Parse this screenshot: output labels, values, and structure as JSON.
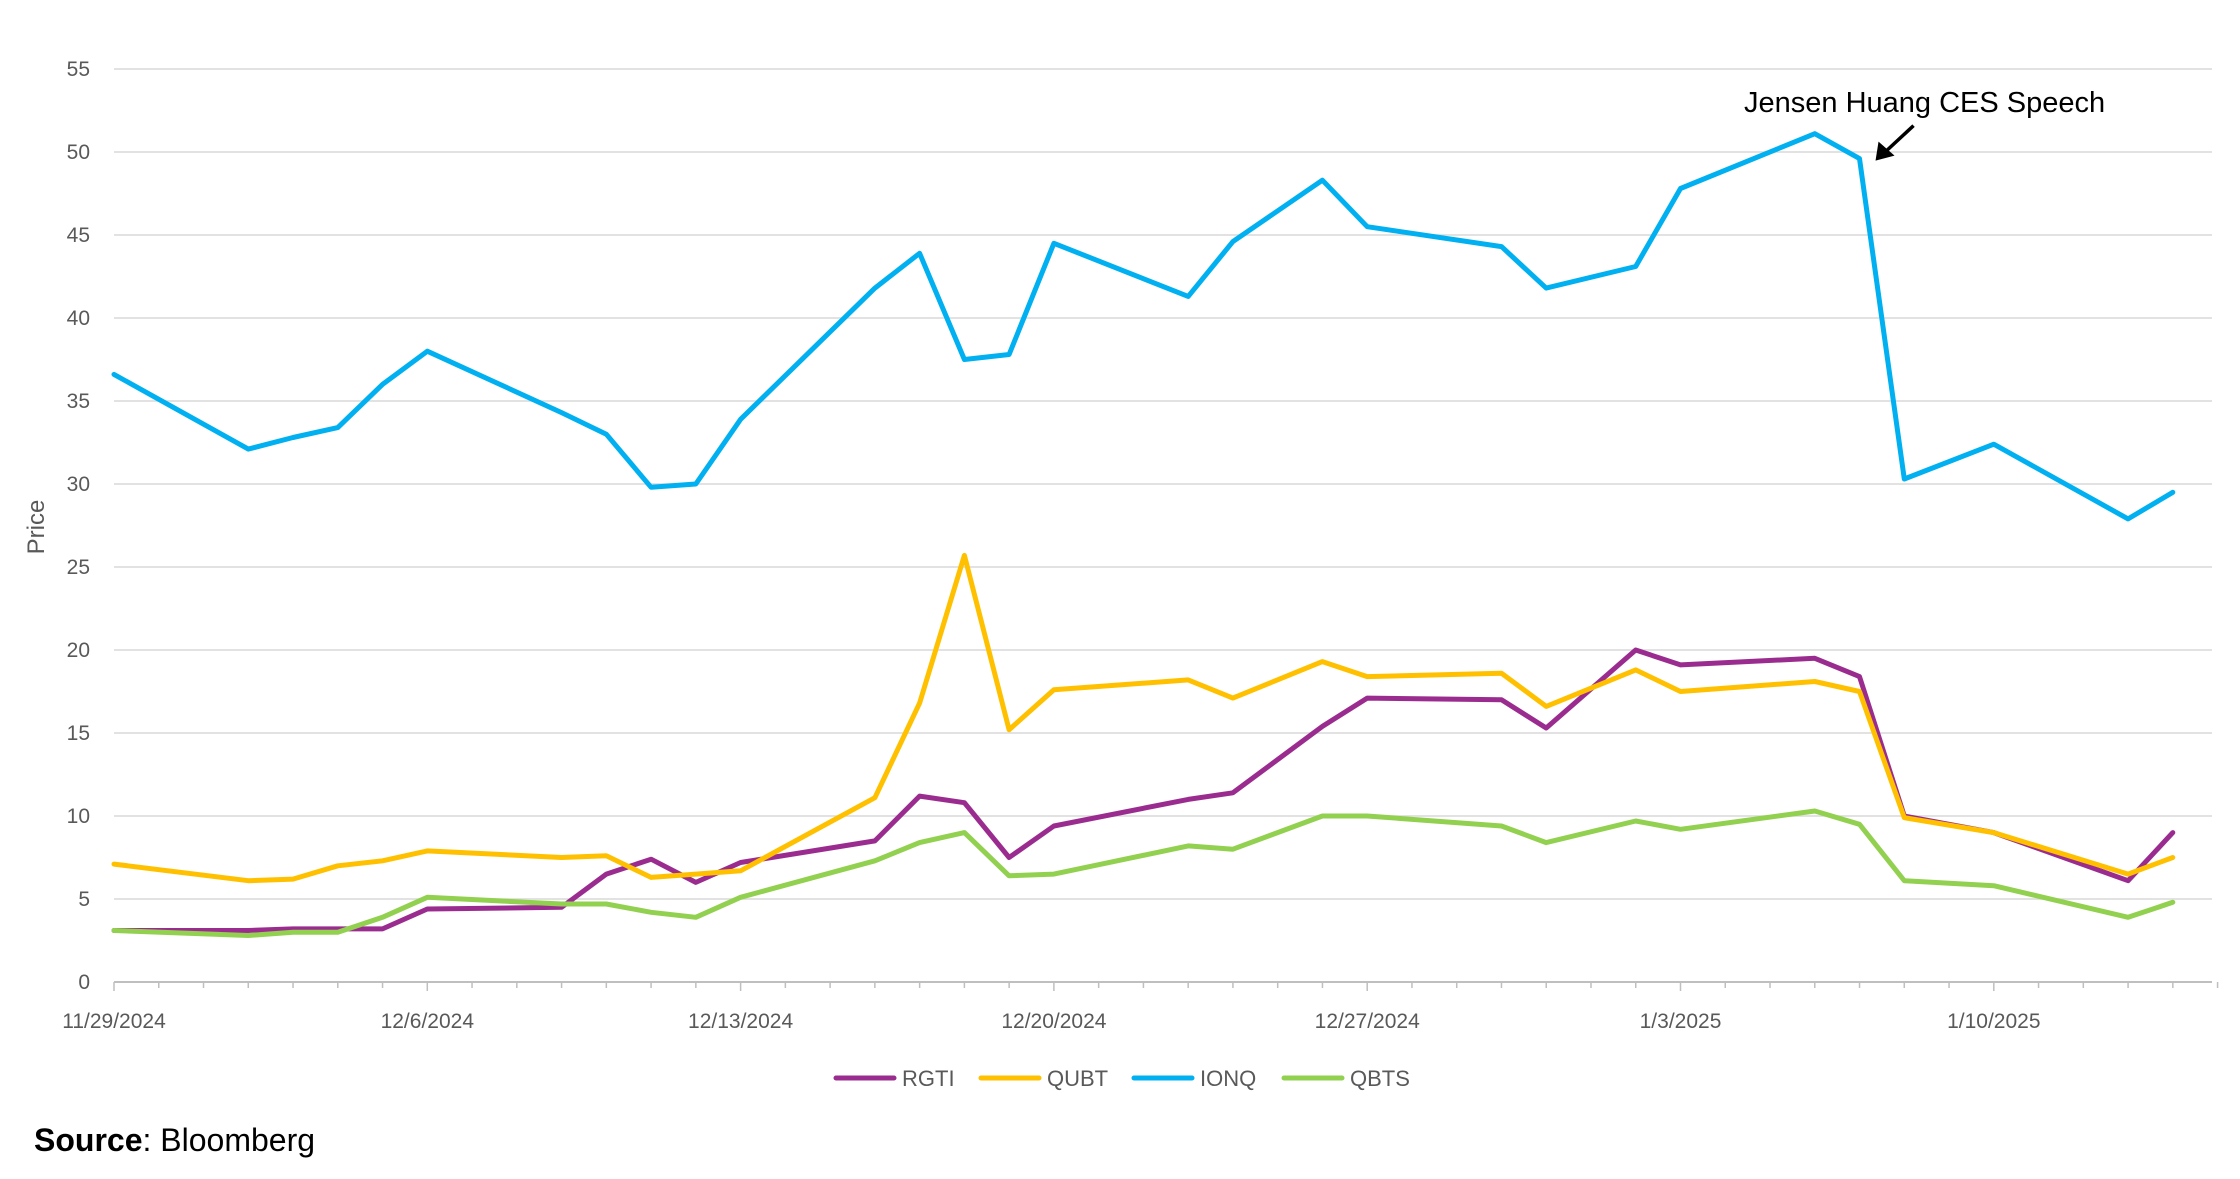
{
  "chart_data": {
    "type": "line",
    "xlabel": "",
    "ylabel": "Price",
    "ylim": [
      0,
      55
    ],
    "yticks": [
      0,
      5,
      10,
      15,
      20,
      25,
      30,
      35,
      40,
      45,
      50,
      55
    ],
    "xticks": [
      "11/29/2024",
      "12/6/2024",
      "12/13/2024",
      "12/20/2024",
      "12/27/2024",
      "1/3/2025",
      "1/10/2025"
    ],
    "grid": true,
    "legend_position": "bottom",
    "dates": [
      "2024-11-29",
      "2024-12-02",
      "2024-12-03",
      "2024-12-04",
      "2024-12-05",
      "2024-12-06",
      "2024-12-09",
      "2024-12-10",
      "2024-12-11",
      "2024-12-12",
      "2024-12-13",
      "2024-12-16",
      "2024-12-17",
      "2024-12-18",
      "2024-12-19",
      "2024-12-20",
      "2024-12-23",
      "2024-12-24",
      "2024-12-26",
      "2024-12-27",
      "2024-12-30",
      "2024-12-31",
      "2025-01-02",
      "2025-01-03",
      "2025-01-06",
      "2025-01-07",
      "2025-01-08",
      "2025-01-10",
      "2025-01-13",
      "2025-01-14"
    ],
    "series": [
      {
        "name": "RGTI",
        "color": "#9B2C8F",
        "values": [
          3.1,
          3.1,
          3.2,
          3.2,
          3.2,
          4.4,
          4.5,
          6.5,
          7.4,
          6.0,
          7.2,
          8.5,
          11.2,
          10.8,
          7.5,
          9.4,
          11.0,
          11.4,
          15.4,
          17.1,
          17.0,
          15.3,
          20.0,
          19.1,
          19.5,
          18.4,
          10.0,
          9.0,
          6.1,
          9.0
        ]
      },
      {
        "name": "QUBT",
        "color": "#FFC000",
        "values": [
          7.1,
          6.1,
          6.2,
          7.0,
          7.3,
          7.9,
          7.5,
          7.6,
          6.3,
          6.5,
          6.7,
          11.1,
          16.8,
          25.7,
          15.2,
          17.6,
          18.2,
          17.1,
          19.3,
          18.4,
          18.6,
          16.6,
          18.8,
          17.5,
          18.1,
          17.5,
          9.9,
          9.0,
          6.5,
          7.5
        ]
      },
      {
        "name": "IONQ",
        "color": "#00B0F0",
        "values": [
          36.6,
          32.1,
          32.8,
          33.4,
          36.0,
          38.0,
          34.3,
          33.0,
          29.8,
          30.0,
          33.9,
          41.8,
          43.9,
          37.5,
          37.8,
          44.5,
          41.3,
          44.6,
          48.3,
          45.5,
          44.3,
          41.8,
          43.1,
          47.8,
          51.1,
          49.6,
          30.3,
          32.4,
          27.9,
          29.5
        ]
      },
      {
        "name": "QBTS",
        "color": "#92D050",
        "values": [
          3.1,
          2.8,
          3.0,
          3.0,
          3.9,
          5.1,
          4.7,
          4.7,
          4.2,
          3.9,
          5.1,
          7.3,
          8.4,
          9.0,
          6.4,
          6.5,
          8.2,
          8.0,
          10.0,
          10.0,
          9.4,
          8.4,
          9.7,
          9.2,
          10.3,
          9.5,
          6.1,
          5.8,
          3.9,
          4.8
        ]
      }
    ],
    "annotations": [
      {
        "text": "Jensen Huang CES Speech",
        "series": "IONQ",
        "date": "2025-01-07"
      }
    ]
  },
  "source": {
    "label": "Source",
    "value": ": Bloomberg"
  }
}
